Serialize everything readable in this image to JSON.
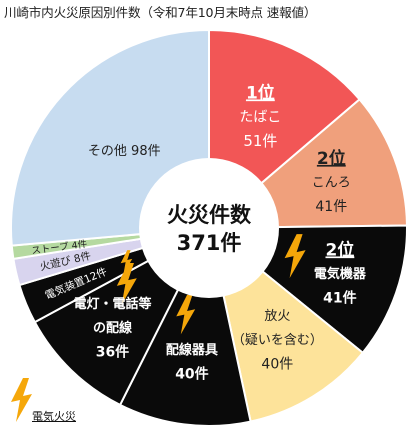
{
  "title": "川崎市内火災原因別件数（令和7年10月末時点 速報値）",
  "legend": {
    "label": "電気火災",
    "icon": "lightning-bolt-icon",
    "icon_color": "#f5a70a"
  },
  "center": {
    "line1": "火災件数",
    "line2": "371件"
  },
  "colors": {
    "electric_bolt": "#f5a70a",
    "slice_border": "#ffffff"
  },
  "chart_data": {
    "type": "pie",
    "subtype": "donut",
    "total": 371,
    "start": "12 o'clock, clockwise",
    "slices": [
      {
        "name": "たばこ",
        "rank": "1位",
        "value": 51,
        "value_label": "51件",
        "color": "#f25656",
        "text_color": "#ffffff",
        "electric": false
      },
      {
        "name": "こんろ",
        "rank": "2位",
        "value": 41,
        "value_label": "41件",
        "color": "#f0a07c",
        "text_color": "#222222",
        "electric": false
      },
      {
        "name": "電気機器",
        "rank": "2位",
        "value": 41,
        "value_label": "41件",
        "color": "#0a0a0a",
        "text_color": "#ffffff",
        "electric": true
      },
      {
        "name": "放火（疑いを含む）",
        "name_lines": [
          "放火",
          "（疑いを含む）"
        ],
        "value": 40,
        "value_label": "40件",
        "color": "#fde39a",
        "text_color": "#222222",
        "electric": false
      },
      {
        "name": "配線器具",
        "value": 40,
        "value_label": "40件",
        "color": "#0a0a0a",
        "text_color": "#ffffff",
        "electric": true
      },
      {
        "name": "電灯・電話等の配線",
        "name_lines": [
          "電灯・電話等",
          "の配線"
        ],
        "value": 36,
        "value_label": "36件",
        "color": "#0a0a0a",
        "text_color": "#ffffff",
        "electric": true
      },
      {
        "name": "電気装置",
        "value": 12,
        "value_label": "12件",
        "label": "電気装置12件",
        "color": "#0a0a0a",
        "text_color": "#ffffff",
        "electric": true
      },
      {
        "name": "火遊び",
        "value": 8,
        "value_label": "8件",
        "label": "火遊び 8件",
        "color": "#d8d4ee",
        "text_color": "#222222",
        "electric": false
      },
      {
        "name": "ストーブ",
        "value": 4,
        "value_label": "4件",
        "label": "ストーブ 4件",
        "color": "#b5d9a0",
        "text_color": "#222222",
        "electric": false
      },
      {
        "name": "その他",
        "value": 98,
        "value_label": "98件",
        "label": "その他 98件",
        "color": "#c7dcf0",
        "text_color": "#222222",
        "electric": false
      }
    ]
  }
}
